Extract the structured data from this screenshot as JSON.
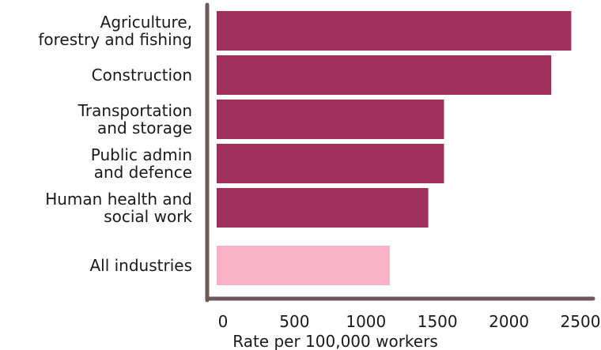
{
  "chart_data": {
    "type": "bar",
    "orientation": "horizontal",
    "categories": [
      [
        "Agriculture,",
        "forestry and fishing"
      ],
      [
        "Construction"
      ],
      [
        "Transportation",
        "and storage"
      ],
      [
        "Public admin",
        "and defence"
      ],
      [
        "Human health and",
        "social work"
      ],
      [
        "All industries"
      ]
    ],
    "values": [
      2480,
      2340,
      1590,
      1590,
      1480,
      1210
    ],
    "bar_colors": [
      "#a0305c",
      "#a0305c",
      "#a0305c",
      "#a0305c",
      "#a0305c",
      "#f7b3c5"
    ],
    "xlim": [
      0,
      2500
    ],
    "xticks": [
      "0",
      "500",
      "1000",
      "1500",
      "2000",
      "2500"
    ],
    "xlabel": "Rate per 100,000 workers",
    "ylabel": "",
    "title": "",
    "axis_color": "#6b5a57",
    "grid": false,
    "legend": "none"
  }
}
